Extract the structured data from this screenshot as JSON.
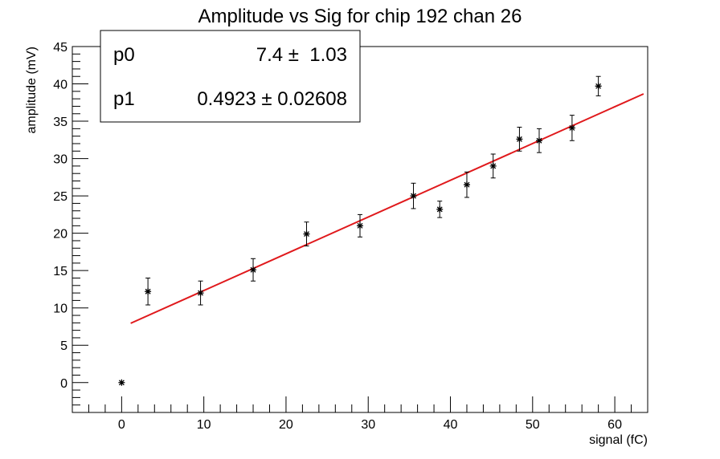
{
  "chart_data": {
    "type": "scatter",
    "title": "Amplitude vs Sig for chip 192 chan 26",
    "xlabel": "signal (fC)",
    "ylabel": "amplitude (mV)",
    "xlim": [
      -6,
      64
    ],
    "ylim": [
      -4,
      45
    ],
    "x_ticks": [
      0,
      10,
      20,
      30,
      40,
      50,
      60
    ],
    "y_ticks": [
      0,
      5,
      10,
      15,
      20,
      25,
      30,
      35,
      40,
      45
    ],
    "grid": false,
    "marker": "star",
    "points": [
      {
        "x": 0,
        "y": 0,
        "err": 0
      },
      {
        "x": 3.2,
        "y": 12.2,
        "err": 1.8
      },
      {
        "x": 9.6,
        "y": 12.0,
        "err": 1.6
      },
      {
        "x": 16.0,
        "y": 15.1,
        "err": 1.5
      },
      {
        "x": 22.5,
        "y": 19.9,
        "err": 1.6
      },
      {
        "x": 29.0,
        "y": 21.0,
        "err": 1.5
      },
      {
        "x": 35.5,
        "y": 25.0,
        "err": 1.7
      },
      {
        "x": 38.7,
        "y": 23.2,
        "err": 1.1
      },
      {
        "x": 42.0,
        "y": 26.5,
        "err": 1.7
      },
      {
        "x": 45.2,
        "y": 29.0,
        "err": 1.6
      },
      {
        "x": 48.4,
        "y": 32.6,
        "err": 1.6
      },
      {
        "x": 50.8,
        "y": 32.4,
        "err": 1.6
      },
      {
        "x": 54.8,
        "y": 34.1,
        "err": 1.7
      },
      {
        "x": 58.0,
        "y": 39.7,
        "err": 1.3
      }
    ],
    "fit": {
      "type": "linear",
      "color": "#e0191c",
      "x_range": [
        1.1,
        63.5
      ],
      "p0": 7.4,
      "p1": 0.4923
    },
    "stats_box": {
      "position": "top-left",
      "rows": [
        {
          "name": "p0",
          "value": "7.4 ±  1.03"
        },
        {
          "name": "p1",
          "value": "0.4923 ± 0.02608"
        }
      ]
    }
  }
}
